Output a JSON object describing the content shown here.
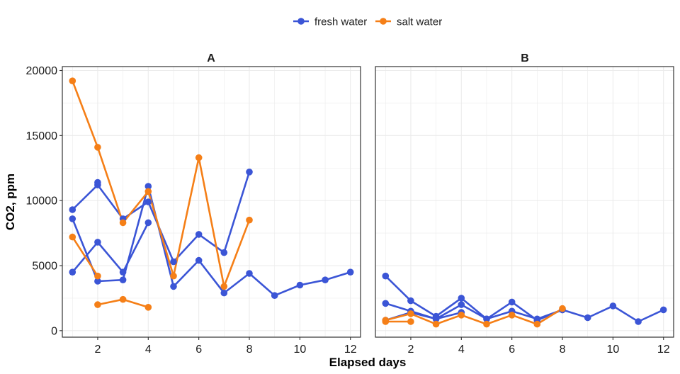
{
  "chart_data": {
    "type": "line",
    "xlabel": "Elapsed days",
    "ylabel": "CO2, ppm",
    "xlim": [
      0.6,
      12.4
    ],
    "ylim": [
      -500,
      20300
    ],
    "x_ticks": [
      2,
      4,
      6,
      8,
      10,
      12
    ],
    "y_ticks": [
      0,
      5000,
      10000,
      15000,
      20000
    ],
    "grid": true,
    "legend": {
      "position": "top",
      "entries": [
        {
          "name": "fresh water",
          "color": "#3b55d6"
        },
        {
          "name": "salt water",
          "color": "#f57f17"
        }
      ]
    },
    "panels": [
      {
        "label": "A",
        "series": [
          {
            "group": "fresh water",
            "points": [
              [
                1,
                9300
              ],
              [
                2,
                11200
              ],
              [
                3,
                8600
              ],
              [
                4,
                9900
              ],
              [
                5,
                5300
              ],
              [
                6,
                7400
              ],
              [
                7,
                6000
              ],
              [
                8,
                12200
              ]
            ]
          },
          {
            "group": "fresh water",
            "points": [
              [
                1,
                8600
              ],
              [
                2,
                3800
              ],
              [
                3,
                3900
              ],
              [
                4,
                11100
              ],
              [
                5,
                3400
              ],
              [
                6,
                5400
              ],
              [
                7,
                2900
              ],
              [
                8,
                4400
              ],
              [
                9,
                2700
              ],
              [
                10,
                3500
              ],
              [
                11,
                3900
              ],
              [
                12,
                4500
              ]
            ]
          },
          {
            "group": "fresh water",
            "points": [
              [
                1,
                4500
              ],
              [
                2,
                6800
              ],
              [
                3,
                4500
              ],
              [
                4,
                8300
              ]
            ]
          },
          {
            "group": "fresh water",
            "points": [
              [
                2,
                11400
              ]
            ]
          },
          {
            "group": "salt water",
            "points": [
              [
                1,
                19200
              ],
              [
                2,
                14100
              ],
              [
                3,
                8300
              ],
              [
                4,
                10700
              ],
              [
                5,
                4200
              ],
              [
                6,
                13300
              ],
              [
                7,
                3400
              ],
              [
                8,
                8500
              ]
            ]
          },
          {
            "group": "salt water",
            "points": [
              [
                1,
                7200
              ],
              [
                2,
                4200
              ]
            ]
          },
          {
            "group": "salt water",
            "points": [
              [
                2,
                2000
              ],
              [
                3,
                2400
              ],
              [
                4,
                1800
              ]
            ]
          }
        ]
      },
      {
        "label": "B",
        "series": [
          {
            "group": "fresh water",
            "points": [
              [
                1,
                4200
              ],
              [
                2,
                2300
              ],
              [
                3,
                1100
              ],
              [
                4,
                2500
              ],
              [
                5,
                900
              ],
              [
                6,
                2200
              ],
              [
                7,
                800
              ],
              [
                8,
                1600
              ],
              [
                9,
                1000
              ],
              [
                10,
                1900
              ],
              [
                11,
                700
              ],
              [
                12,
                1600
              ]
            ]
          },
          {
            "group": "fresh water",
            "points": [
              [
                1,
                2100
              ],
              [
                2,
                1500
              ],
              [
                3,
                900
              ],
              [
                4,
                2000
              ],
              [
                5,
                900
              ],
              [
                6,
                1500
              ],
              [
                7,
                900
              ],
              [
                8,
                1600
              ]
            ]
          },
          {
            "group": "fresh water",
            "points": [
              [
                1,
                800
              ],
              [
                2,
                1400
              ],
              [
                3,
                900
              ],
              [
                4,
                1400
              ]
            ]
          },
          {
            "group": "salt water",
            "points": [
              [
                1,
                800
              ],
              [
                2,
                1300
              ],
              [
                3,
                500
              ],
              [
                4,
                1200
              ],
              [
                5,
                500
              ],
              [
                6,
                1200
              ],
              [
                7,
                500
              ],
              [
                8,
                1700
              ]
            ]
          },
          {
            "group": "salt water",
            "points": [
              [
                1,
                700
              ],
              [
                2,
                700
              ]
            ]
          }
        ]
      }
    ]
  }
}
